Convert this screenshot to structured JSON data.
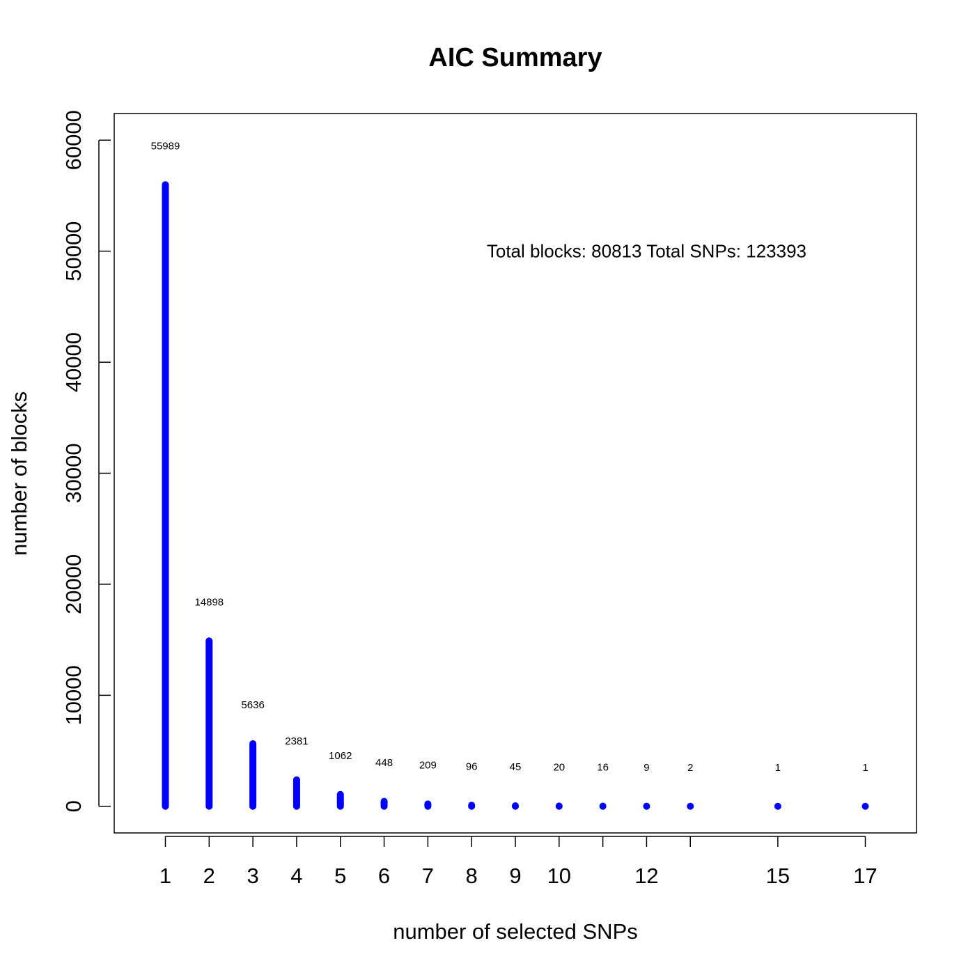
{
  "chart_data": {
    "type": "bar",
    "title": "AIC Summary",
    "xlabel": "number of selected SNPs",
    "ylabel": "number of blocks",
    "x": [
      1,
      2,
      3,
      4,
      5,
      6,
      7,
      8,
      9,
      10,
      11,
      12,
      13,
      15,
      17
    ],
    "values": [
      55989,
      14898,
      5636,
      2381,
      1062,
      448,
      209,
      96,
      45,
      20,
      16,
      9,
      2,
      1,
      1
    ],
    "data_labels": [
      "55989",
      "14898",
      "5636",
      "2381",
      "1062",
      "448",
      "209",
      "96",
      "45",
      "20",
      "16",
      "9",
      "2",
      "1",
      "1"
    ],
    "x_ticks": [
      1,
      2,
      3,
      4,
      5,
      6,
      7,
      8,
      9,
      10,
      11,
      12,
      13,
      15,
      17
    ],
    "x_tick_labels": [
      "1",
      "2",
      "3",
      "4",
      "5",
      "6",
      "7",
      "8",
      "9",
      "10",
      "",
      "12",
      "",
      "15",
      "17"
    ],
    "y_ticks": [
      0,
      10000,
      20000,
      30000,
      40000,
      50000,
      60000
    ],
    "y_tick_labels": [
      "0",
      "10000",
      "20000",
      "30000",
      "40000",
      "50000",
      "60000"
    ],
    "xlim": [
      -0.17,
      18.17
    ],
    "ylim": [
      -2400,
      62400
    ],
    "annotation": "Total blocks: 80813  Total SNPs: 123393",
    "annotation_anchor": {
      "x": 12,
      "y": 50000
    },
    "color": "#0000ff",
    "grid": false,
    "legend": "none"
  }
}
